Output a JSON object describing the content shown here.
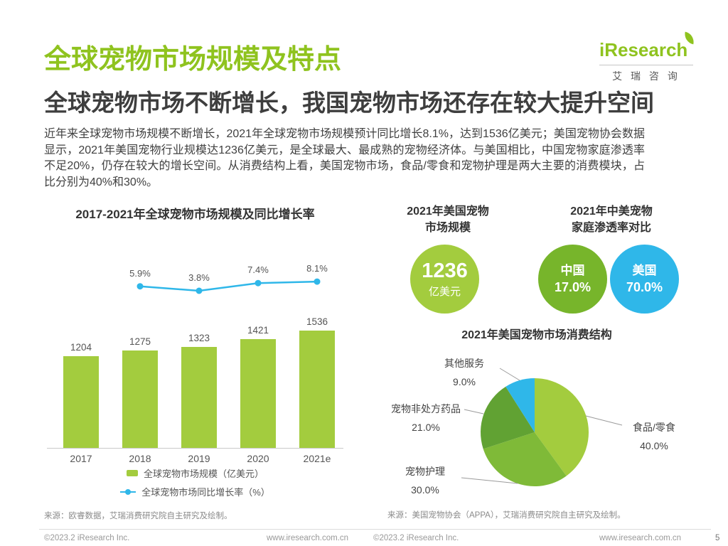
{
  "page": {
    "title": "全球宠物市场规模及特点",
    "subtitle": "全球宠物市场不断增长，我国宠物市场还存在较大提升空间",
    "paragraph": "近年来全球宠物市场规模不断增长，2021年全球宠物市场规模预计同比增长8.1%，达到1536亿美元；美国宠物协会数据显示，2021年美国宠物行业规模达1236亿美元，是全球最大、最成熟的宠物经济体。与美国相比，中国宠物家庭渗透率不足20%，仍存在较大的增长空间。从消费结构上看，美国宠物市场，食品/零食和宠物护理是两大主要的消费模块，占比分别为40%和30%。",
    "page_number": "5"
  },
  "logo": {
    "brand": "iResearch",
    "brand_cn": "艾 瑞 咨 询"
  },
  "colors": {
    "brand_green": "#8FC31F",
    "bar_green": "#A3CC3E",
    "line_blue": "#2FB7E9",
    "dark_green": "#77B52B"
  },
  "market_size_badge": {
    "title_line1": "2021年美国宠物",
    "title_line2": "市场规模",
    "value": "1236",
    "unit": "亿美元",
    "color": "#A3CC3E"
  },
  "penetration": {
    "title_line1": "2021年中美宠物",
    "title_line2": "家庭渗透率对比",
    "items": [
      {
        "label": "中国",
        "value": "17.0%",
        "color": "#77B52B"
      },
      {
        "label": "美国",
        "value": "70.0%",
        "color": "#2FB7E9"
      }
    ]
  },
  "chart_data": [
    {
      "type": "bar",
      "title": "2017-2021年全球宠物市场规模及同比增长率",
      "categories": [
        "2017",
        "2018",
        "2019",
        "2020",
        "2021e"
      ],
      "series": [
        {
          "name": "全球宠物市场规模（亿美元）",
          "type": "bar",
          "color": "#A3CC3E",
          "values": [
            1204,
            1275,
            1323,
            1421,
            1536
          ]
        },
        {
          "name": "全球宠物市场同比增长率（%）",
          "type": "line",
          "color": "#2FB7E9",
          "values": [
            null,
            5.9,
            3.8,
            7.4,
            8.1
          ],
          "labels": [
            "",
            "5.9%",
            "3.8%",
            "7.4%",
            "8.1%"
          ]
        }
      ],
      "xlabel": "",
      "ylabel": "",
      "grid": false,
      "y_axis_hidden": true,
      "legend_position": "bottom"
    },
    {
      "type": "pie",
      "title": "2021年美国宠物市场消费结构",
      "labels": [
        "食品/零食",
        "宠物护理",
        "宠物非处方药品",
        "其他服务"
      ],
      "values": [
        40.0,
        30.0,
        21.0,
        9.0
      ],
      "pct_labels": [
        "40.0%",
        "30.0%",
        "21.0%",
        "9.0%"
      ],
      "colors": [
        "#A3CC3E",
        "#7FBA38",
        "#61A233",
        "#2FB7E9"
      ],
      "label_style": "outside",
      "start_angle": "top",
      "direction": "clockwise"
    }
  ],
  "sources": {
    "left": "来源：欧睿数据，艾瑞消费研究院自主研究及绘制。",
    "right": "来源：美国宠物协会（APPA），艾瑞消费研究院自主研究及绘制。"
  },
  "footer": {
    "left_copyright": "©2023.2 iResearch Inc.",
    "left_url": "www.iresearch.com.cn",
    "right_copyright": "©2023.2 iResearch Inc.",
    "right_url": "www.iresearch.com.cn"
  }
}
